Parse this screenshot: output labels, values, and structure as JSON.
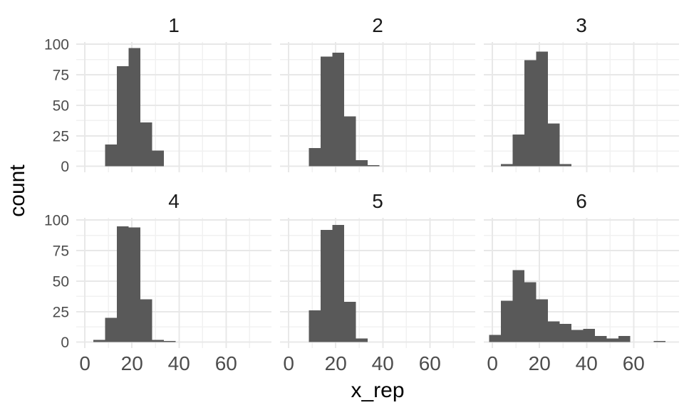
{
  "figure": {
    "background": "#ffffff",
    "bar_color": "#595959",
    "grid_major_color": "#e8e8e8",
    "grid_minor_color": "#f1f1f1",
    "tick_label_color": "#4d4d4d",
    "facet_label_color": "#1a1a1a",
    "axis_title_color": "#000000"
  },
  "chart_data": {
    "type": "bar",
    "subtype": "faceted-histogram",
    "title": "",
    "xlabel": "x_rep",
    "ylabel": "count",
    "facet_layout": {
      "rows": 2,
      "cols": 3
    },
    "binwidth": 5,
    "x_ticks": [
      0,
      20,
      40,
      60
    ],
    "x_minor_ticks": [
      10,
      30,
      50,
      70
    ],
    "y_ticks": [
      0,
      25,
      50,
      75,
      100
    ],
    "y_minor_ticks": [
      12.5,
      37.5,
      62.5,
      87.5
    ],
    "xlim": [
      -3.7,
      79.3
    ],
    "ylim": [
      -4.85,
      101.85
    ],
    "grid": true,
    "legend": "none",
    "panels": [
      {
        "label": "1",
        "bin_start": 8.5,
        "counts": [
          18,
          82,
          97,
          36,
          13
        ]
      },
      {
        "label": "2",
        "bin_start": 8.5,
        "counts": [
          15,
          90,
          93,
          41,
          5,
          1
        ]
      },
      {
        "label": "3",
        "bin_start": 3.5,
        "counts": [
          2,
          26,
          87,
          94,
          35,
          2
        ]
      },
      {
        "label": "4",
        "bin_start": 3.5,
        "counts": [
          2,
          20,
          95,
          94,
          35,
          2,
          1
        ]
      },
      {
        "label": "5",
        "bin_start": 8.5,
        "counts": [
          26,
          92,
          96,
          33,
          3
        ]
      },
      {
        "label": "6",
        "bin_start": -1.5,
        "counts": [
          6,
          34,
          59,
          49,
          35,
          17,
          15,
          10,
          11,
          5,
          3,
          5,
          0,
          0,
          1
        ]
      }
    ]
  }
}
